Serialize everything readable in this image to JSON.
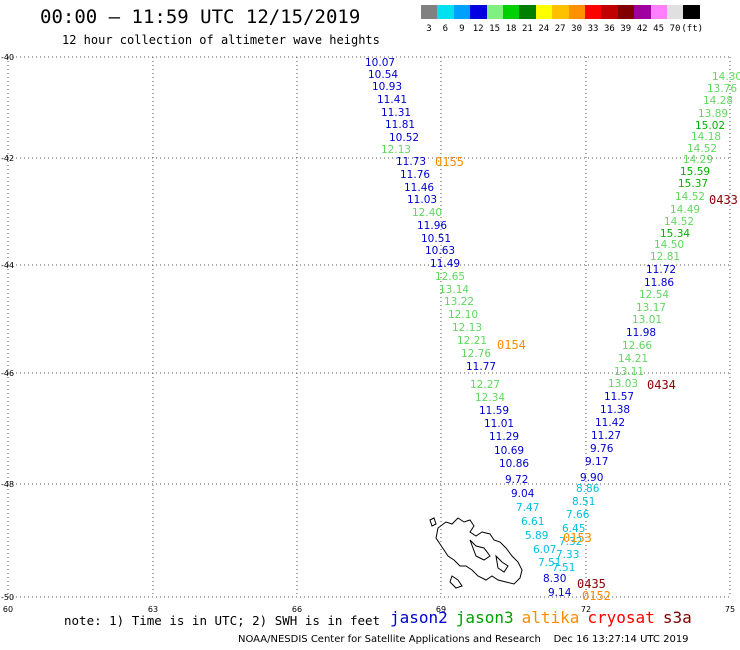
{
  "header": {
    "title": "00:00 – 11:59 UTC 12/15/2019",
    "subtitle": "12 hour collection of altimeter wave heights"
  },
  "legend": {
    "colors": [
      "#808080",
      "#00e0f0",
      "#00a0ff",
      "#0000e0",
      "#80f080",
      "#00d000",
      "#008000",
      "#ffff00",
      "#ffc000",
      "#ff9000",
      "#ff0000",
      "#c00000",
      "#800000",
      "#a000a0",
      "#ff80ff",
      "#e0e0e0",
      "#000000"
    ],
    "labels": [
      "3",
      "6",
      "9",
      "12",
      "15",
      "18",
      "21",
      "24",
      "27",
      "30",
      "33",
      "36",
      "39",
      "42",
      "45",
      "70",
      "(ft)"
    ]
  },
  "axes": {
    "x_ticks": [
      "60",
      "63",
      "66",
      "69",
      "72",
      "75"
    ],
    "y_ticks": [
      "-40",
      "-42",
      "-44",
      "-46",
      "-48",
      "-50"
    ]
  },
  "observations": [
    {
      "v": "10.07",
      "c": "#0000d0"
    },
    {
      "v": "10.54",
      "c": "#0000d0"
    },
    {
      "v": "10.93",
      "c": "#0000d0"
    },
    {
      "v": "11.41",
      "c": "#0000d0"
    },
    {
      "v": "11.31",
      "c": "#0000d0"
    },
    {
      "v": "11.81",
      "c": "#0000d0"
    },
    {
      "v": "10.52",
      "c": "#0000d0"
    },
    {
      "v": "12.13",
      "c": "#60d860"
    },
    {
      "v": "11.73",
      "c": "#0000d0"
    },
    {
      "v": "11.76",
      "c": "#0000d0"
    },
    {
      "v": "11.46",
      "c": "#0000d0"
    },
    {
      "v": "11.03",
      "c": "#0000d0"
    },
    {
      "v": "12.40",
      "c": "#60d860"
    },
    {
      "v": "11.96",
      "c": "#0000d0"
    },
    {
      "v": "10.51",
      "c": "#0000d0"
    },
    {
      "v": "10.63",
      "c": "#0000d0"
    },
    {
      "v": "11.49",
      "c": "#0000d0"
    },
    {
      "v": "12.65",
      "c": "#60d860"
    },
    {
      "v": "13.14",
      "c": "#60d860"
    },
    {
      "v": "13.22",
      "c": "#60d860"
    },
    {
      "v": "12.10",
      "c": "#60d860"
    },
    {
      "v": "12.13",
      "c": "#60d860"
    },
    {
      "v": "12.21",
      "c": "#60d860"
    },
    {
      "v": "12.76",
      "c": "#60d860"
    },
    {
      "v": "11.77",
      "c": "#0000d0"
    },
    {
      "v": "12.27",
      "c": "#60d860"
    },
    {
      "v": "12.34",
      "c": "#60d860"
    },
    {
      "v": "11.59",
      "c": "#0000d0"
    },
    {
      "v": "11.01",
      "c": "#0000d0"
    },
    {
      "v": "11.29",
      "c": "#0000d0"
    },
    {
      "v": "10.69",
      "c": "#0000d0"
    },
    {
      "v": "10.86",
      "c": "#0000d0"
    },
    {
      "v": "9.72",
      "c": "#0000d0"
    },
    {
      "v": "9.04",
      "c": "#0000d0"
    },
    {
      "v": "7.47",
      "c": "#00c0e0"
    },
    {
      "v": "6.61",
      "c": "#00c0e0"
    },
    {
      "v": "5.89",
      "c": "#00c0e0"
    },
    {
      "v": "6.07",
      "c": "#00c0e0"
    },
    {
      "v": "7.51",
      "c": "#00c0e0"
    },
    {
      "v": "8.30",
      "c": "#0000d0"
    },
    {
      "v": "9.14",
      "c": "#0000d0"
    },
    {
      "v": "9.90",
      "c": "#0000d0"
    },
    {
      "v": "8.86",
      "c": "#00c0e0"
    },
    {
      "v": "8.51",
      "c": "#00c0e0"
    },
    {
      "v": "7.66",
      "c": "#00c0e0"
    },
    {
      "v": "6.45",
      "c": "#00c0e0"
    },
    {
      "v": "7.32",
      "c": "#00c0e0"
    },
    {
      "v": "7.33",
      "c": "#00c0e0"
    },
    {
      "v": "7.51",
      "c": "#00c0e0"
    },
    {
      "v": "9.17",
      "c": "#0000d0"
    },
    {
      "v": "9.76",
      "c": "#0000d0"
    },
    {
      "v": "11.27",
      "c": "#0000d0"
    },
    {
      "v": "11.42",
      "c": "#0000d0"
    },
    {
      "v": "11.38",
      "c": "#0000d0"
    },
    {
      "v": "11.57",
      "c": "#0000d0"
    },
    {
      "v": "13.03",
      "c": "#60d860"
    },
    {
      "v": "13.11",
      "c": "#60d860"
    },
    {
      "v": "14.21",
      "c": "#60d860"
    },
    {
      "v": "12.66",
      "c": "#60d860"
    },
    {
      "v": "11.98",
      "c": "#0000d0"
    },
    {
      "v": "13.01",
      "c": "#60d860"
    },
    {
      "v": "13.17",
      "c": "#60d860"
    },
    {
      "v": "12.54",
      "c": "#60d860"
    },
    {
      "v": "11.86",
      "c": "#0000d0"
    },
    {
      "v": "11.72",
      "c": "#0000d0"
    },
    {
      "v": "12.81",
      "c": "#60d860"
    },
    {
      "v": "14.50",
      "c": "#60d860"
    },
    {
      "v": "15.34",
      "c": "#00b000"
    },
    {
      "v": "14.52",
      "c": "#60d860"
    },
    {
      "v": "14.49",
      "c": "#60d860"
    },
    {
      "v": "14.52",
      "c": "#60d860"
    },
    {
      "v": "15.37",
      "c": "#00b000"
    },
    {
      "v": "15.59",
      "c": "#00b000"
    },
    {
      "v": "14.29",
      "c": "#60d860"
    },
    {
      "v": "14.52",
      "c": "#60d860"
    },
    {
      "v": "14.18",
      "c": "#60d860"
    },
    {
      "v": "15.02",
      "c": "#00b000"
    },
    {
      "v": "13.89",
      "c": "#60d860"
    },
    {
      "v": "14.28",
      "c": "#60d860"
    },
    {
      "v": "13.76",
      "c": "#60d860"
    },
    {
      "v": "14.30",
      "c": "#60d860"
    }
  ],
  "pass_times": [
    {
      "t": "0155",
      "c": "#ff8c00"
    },
    {
      "t": "0154",
      "c": "#ff8c00"
    },
    {
      "t": "0153",
      "c": "#ff8c00"
    },
    {
      "t": "0152",
      "c": "#ff8c00"
    },
    {
      "t": "0435",
      "c": "#8b0000"
    },
    {
      "t": "0434",
      "c": "#8b0000"
    },
    {
      "t": "0433",
      "c": "#8b0000"
    }
  ],
  "note": "note: 1) Time is in UTC; 2) SWH is in feet",
  "satellites": [
    {
      "name": "jason2",
      "c": "#0000d0"
    },
    {
      "name": "jason3",
      "c": "#00a000"
    },
    {
      "name": "altika",
      "c": "#ff8c00"
    },
    {
      "name": "cryosat",
      "c": "#ff0000"
    },
    {
      "name": "s3a",
      "c": "#800000"
    }
  ],
  "footer": "NOAA/NESDIS Center for Satellite Applications and Research    Dec 16 13:27:14 UTC 2019"
}
